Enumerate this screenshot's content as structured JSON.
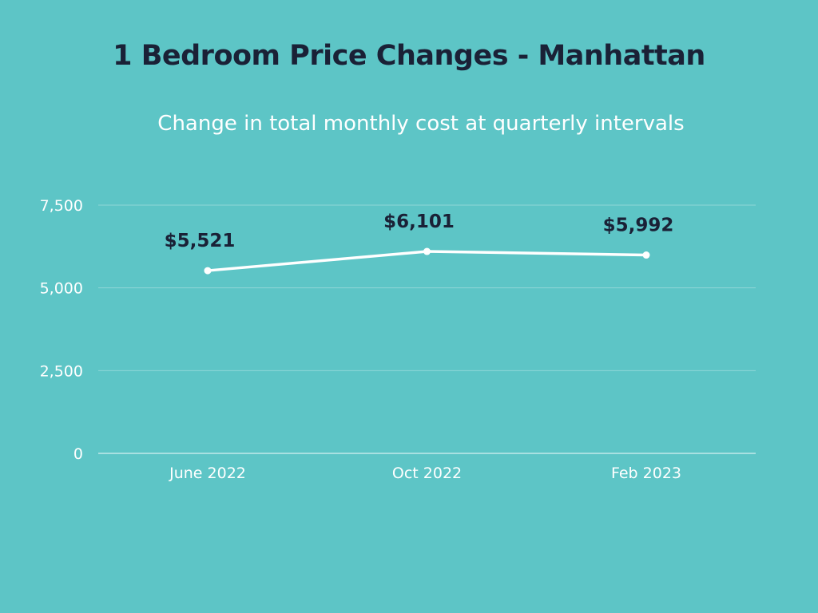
{
  "chart_data": {
    "type": "line",
    "title": "1 Bedroom Price Changes - Manhattan",
    "subtitle": "Change in total monthly cost at quarterly intervals",
    "categories": [
      "June 2022",
      "Oct 2022",
      "Feb 2023"
    ],
    "series": [
      {
        "values": [
          5521,
          6101,
          5992
        ],
        "data_labels": [
          "$5,521",
          "$6,101",
          "$5,992"
        ]
      }
    ],
    "ylim": [
      0,
      7500
    ],
    "yticks": [
      0,
      2500,
      5000,
      7500
    ],
    "ytick_labels": [
      "0",
      "2,500",
      "5,000",
      "7,500"
    ],
    "grid": true,
    "colors": {
      "background": "#5dc5c6",
      "line": "#ffffff",
      "title": "#1a2136",
      "data_label": "#1a2136",
      "grid": "#8fd6d7"
    }
  }
}
